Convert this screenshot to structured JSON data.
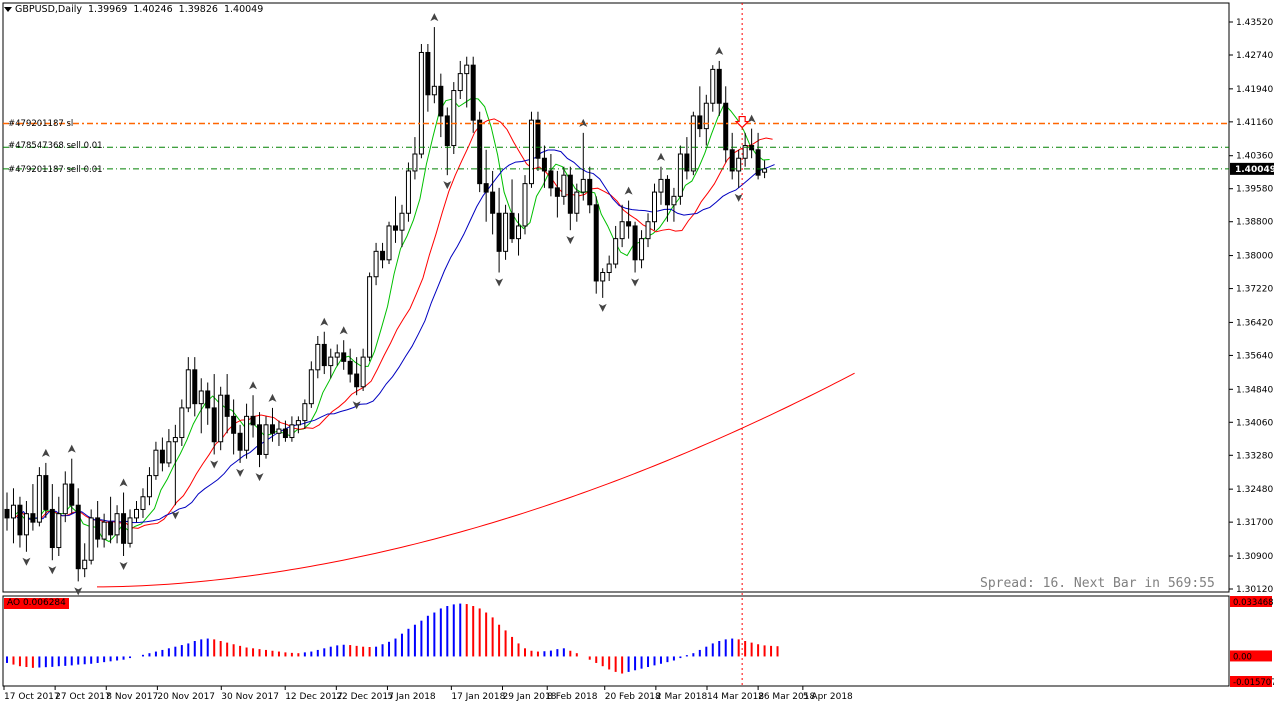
{
  "header": {
    "symbol": "GBPUSD,Daily",
    "open": "1.39969",
    "high": "1.40246",
    "low": "1.39826",
    "close": "1.40049"
  },
  "orders": [
    {
      "label": "#479201187 sl",
      "price": 1.4112,
      "color": "#ff6600"
    },
    {
      "label": "#478547368 sell 0.01",
      "price": 1.4056,
      "color": "#008000"
    },
    {
      "label": "#479201187 sell 0.01",
      "price": 1.40049,
      "color": "#008000"
    }
  ],
  "price_axis": {
    "labels": [
      "1.43520",
      "1.42740",
      "1.41940",
      "1.41160",
      "1.40360",
      "1.39580",
      "1.38800",
      "1.38000",
      "1.37220",
      "1.36420",
      "1.35640",
      "1.34840",
      "1.34060",
      "1.33280",
      "1.32480",
      "1.31700",
      "1.30900",
      "1.30120"
    ],
    "current": "1.40049",
    "current_bg": "#000000"
  },
  "time_axis": {
    "labels": [
      "17 Oct 2017",
      "27 Oct 2017",
      "8 Nov 2017",
      "20 Nov 2017",
      "30 Nov 2017",
      "12 Dec 2017",
      "22 Dec 2017",
      "5 Jan 2018",
      "17 Jan 2018",
      "29 Jan 2018",
      "8 Feb 2018",
      "20 Feb 2018",
      "2 Mar 2018",
      "14 Mar 2018",
      "26 Mar 2018",
      "5 Apr 2018"
    ]
  },
  "status": {
    "spread_text": "Spread: 16. Next Bar in 569:55"
  },
  "oscillator": {
    "label": "AO 0.006284",
    "axis_labels": [
      "0.033468",
      "0.00",
      "-0.015707"
    ],
    "up_color": "#0000ff",
    "down_color": "#ff0000"
  },
  "chart_data": {
    "type": "candlestick",
    "symbol": "GBPUSD",
    "timeframe": "Daily",
    "ylim": [
      1.3012,
      1.4352
    ],
    "ohlc": [
      [
        1.32,
        1.324,
        1.315,
        1.318
      ],
      [
        1.318,
        1.325,
        1.312,
        1.321
      ],
      [
        1.321,
        1.323,
        1.311,
        1.314
      ],
      [
        1.314,
        1.322,
        1.31,
        1.319
      ],
      [
        1.319,
        1.326,
        1.315,
        1.317
      ],
      [
        1.317,
        1.33,
        1.316,
        1.328
      ],
      [
        1.328,
        1.331,
        1.318,
        1.32
      ],
      [
        1.32,
        1.326,
        1.308,
        1.311
      ],
      [
        1.311,
        1.323,
        1.309,
        1.319
      ],
      [
        1.319,
        1.329,
        1.317,
        1.326
      ],
      [
        1.326,
        1.332,
        1.319,
        1.321
      ],
      [
        1.321,
        1.325,
        1.303,
        1.306
      ],
      [
        1.306,
        1.312,
        1.304,
        1.308
      ],
      [
        1.308,
        1.32,
        1.307,
        1.318
      ],
      [
        1.318,
        1.322,
        1.311,
        1.313
      ],
      [
        1.313,
        1.319,
        1.311,
        1.317
      ],
      [
        1.317,
        1.323,
        1.312,
        1.314
      ],
      [
        1.314,
        1.321,
        1.312,
        1.319
      ],
      [
        1.319,
        1.324,
        1.309,
        1.312
      ],
      [
        1.312,
        1.32,
        1.311,
        1.318
      ],
      [
        1.318,
        1.322,
        1.317,
        1.32
      ],
      [
        1.32,
        1.325,
        1.318,
        1.323
      ],
      [
        1.323,
        1.33,
        1.321,
        1.328
      ],
      [
        1.328,
        1.336,
        1.327,
        1.334
      ],
      [
        1.334,
        1.337,
        1.329,
        1.331
      ],
      [
        1.331,
        1.339,
        1.33,
        1.336
      ],
      [
        1.336,
        1.34,
        1.321,
        1.337
      ],
      [
        1.337,
        1.346,
        1.335,
        1.344
      ],
      [
        1.344,
        1.356,
        1.343,
        1.353
      ],
      [
        1.353,
        1.356,
        1.342,
        1.345
      ],
      [
        1.345,
        1.351,
        1.338,
        1.348
      ],
      [
        1.348,
        1.35,
        1.34,
        1.344
      ],
      [
        1.344,
        1.352,
        1.333,
        1.336
      ],
      [
        1.336,
        1.349,
        1.334,
        1.347
      ],
      [
        1.347,
        1.352,
        1.338,
        1.342
      ],
      [
        1.342,
        1.346,
        1.333,
        1.338
      ],
      [
        1.338,
        1.34,
        1.331,
        1.334
      ],
      [
        1.334,
        1.345,
        1.332,
        1.342
      ],
      [
        1.342,
        1.347,
        1.337,
        1.34
      ],
      [
        1.34,
        1.343,
        1.33,
        1.333
      ],
      [
        1.333,
        1.342,
        1.332,
        1.34
      ],
      [
        1.34,
        1.344,
        1.336,
        1.338
      ],
      [
        1.338,
        1.341,
        1.335,
        1.339
      ],
      [
        1.339,
        1.341,
        1.336,
        1.337
      ],
      [
        1.337,
        1.342,
        1.336,
        1.34
      ],
      [
        1.34,
        1.342,
        1.338,
        1.341
      ],
      [
        1.341,
        1.346,
        1.339,
        1.345
      ],
      [
        1.345,
        1.355,
        1.344,
        1.353
      ],
      [
        1.353,
        1.361,
        1.351,
        1.359
      ],
      [
        1.359,
        1.362,
        1.352,
        1.354
      ],
      [
        1.354,
        1.358,
        1.351,
        1.356
      ],
      [
        1.356,
        1.359,
        1.354,
        1.357
      ],
      [
        1.357,
        1.36,
        1.353,
        1.355
      ],
      [
        1.355,
        1.358,
        1.35,
        1.352
      ],
      [
        1.352,
        1.356,
        1.347,
        1.349
      ],
      [
        1.349,
        1.358,
        1.348,
        1.356
      ],
      [
        1.356,
        1.376,
        1.355,
        1.375
      ],
      [
        1.375,
        1.383,
        1.373,
        1.381
      ],
      [
        1.381,
        1.383,
        1.377,
        1.379
      ],
      [
        1.379,
        1.388,
        1.378,
        1.387
      ],
      [
        1.387,
        1.394,
        1.383,
        1.386
      ],
      [
        1.386,
        1.392,
        1.382,
        1.39
      ],
      [
        1.39,
        1.402,
        1.388,
        1.4
      ],
      [
        1.4,
        1.408,
        1.398,
        1.404
      ],
      [
        1.404,
        1.43,
        1.403,
        1.428
      ],
      [
        1.428,
        1.43,
        1.414,
        1.418
      ],
      [
        1.418,
        1.434,
        1.416,
        1.42
      ],
      [
        1.42,
        1.423,
        1.408,
        1.413
      ],
      [
        1.413,
        1.415,
        1.399,
        1.406
      ],
      [
        1.406,
        1.421,
        1.404,
        1.419
      ],
      [
        1.419,
        1.426,
        1.417,
        1.423
      ],
      [
        1.423,
        1.427,
        1.415,
        1.425
      ],
      [
        1.425,
        1.427,
        1.409,
        1.412
      ],
      [
        1.412,
        1.414,
        1.395,
        1.397
      ],
      [
        1.397,
        1.405,
        1.388,
        1.395
      ],
      [
        1.395,
        1.4,
        1.385,
        1.39
      ],
      [
        1.39,
        1.396,
        1.376,
        1.381
      ],
      [
        1.381,
        1.392,
        1.379,
        1.39
      ],
      [
        1.39,
        1.398,
        1.383,
        1.384
      ],
      [
        1.384,
        1.39,
        1.38,
        1.387
      ],
      [
        1.387,
        1.399,
        1.385,
        1.397
      ],
      [
        1.397,
        1.414,
        1.396,
        1.412
      ],
      [
        1.412,
        1.414,
        1.4,
        1.403
      ],
      [
        1.403,
        1.406,
        1.396,
        1.4
      ],
      [
        1.4,
        1.404,
        1.394,
        1.396
      ],
      [
        1.396,
        1.4,
        1.389,
        1.394
      ],
      [
        1.394,
        1.401,
        1.392,
        1.399
      ],
      [
        1.399,
        1.401,
        1.386,
        1.39
      ],
      [
        1.39,
        1.397,
        1.388,
        1.395
      ],
      [
        1.395,
        1.409,
        1.393,
        1.398
      ],
      [
        1.398,
        1.401,
        1.39,
        1.392
      ],
      [
        1.392,
        1.394,
        1.371,
        1.374
      ],
      [
        1.374,
        1.377,
        1.37,
        1.376
      ],
      [
        1.376,
        1.38,
        1.374,
        1.378
      ],
      [
        1.378,
        1.387,
        1.377,
        1.384
      ],
      [
        1.384,
        1.392,
        1.382,
        1.388
      ],
      [
        1.388,
        1.393,
        1.384,
        1.387
      ],
      [
        1.387,
        1.388,
        1.376,
        1.379
      ],
      [
        1.379,
        1.386,
        1.377,
        1.384
      ],
      [
        1.384,
        1.39,
        1.382,
        1.388
      ],
      [
        1.388,
        1.397,
        1.386,
        1.395
      ],
      [
        1.395,
        1.401,
        1.392,
        1.398
      ],
      [
        1.398,
        1.399,
        1.388,
        1.392
      ],
      [
        1.392,
        1.396,
        1.388,
        1.394
      ],
      [
        1.394,
        1.406,
        1.392,
        1.404
      ],
      [
        1.404,
        1.408,
        1.398,
        1.4
      ],
      [
        1.4,
        1.414,
        1.399,
        1.413
      ],
      [
        1.413,
        1.42,
        1.408,
        1.41
      ],
      [
        1.41,
        1.418,
        1.406,
        1.416
      ],
      [
        1.416,
        1.425,
        1.414,
        1.424
      ],
      [
        1.424,
        1.426,
        1.413,
        1.416
      ],
      [
        1.416,
        1.42,
        1.402,
        1.405
      ],
      [
        1.405,
        1.409,
        1.398,
        1.4
      ],
      [
        1.4,
        1.405,
        1.396,
        1.403
      ],
      [
        1.403,
        1.409,
        1.401,
        1.406
      ],
      [
        1.406,
        1.41,
        1.403,
        1.405
      ],
      [
        1.405,
        1.409,
        1.398,
        1.399
      ],
      [
        1.3997,
        1.4025,
        1.3983,
        1.4005
      ]
    ],
    "moving_averages": [
      {
        "color": "#00c000"
      },
      {
        "color": "#ff0000"
      },
      {
        "color": "#0000c0"
      },
      {
        "color": "#ff0000"
      }
    ],
    "ao": {
      "label": "AO",
      "value": 0.006284,
      "ylim": [
        -0.015707,
        0.033468
      ],
      "values": [
        -0.004,
        -0.005,
        -0.006,
        -0.0065,
        -0.007,
        -0.0068,
        -0.0066,
        -0.0064,
        -0.006,
        -0.0058,
        -0.0055,
        -0.005,
        -0.0048,
        -0.0045,
        -0.004,
        -0.0035,
        -0.003,
        -0.0025,
        -0.002,
        -0.001,
        0.0,
        0.001,
        0.002,
        0.003,
        0.004,
        0.005,
        0.006,
        0.007,
        0.008,
        0.0095,
        0.0105,
        0.011,
        0.0105,
        0.0095,
        0.0085,
        0.0075,
        0.0065,
        0.0055,
        0.005,
        0.0045,
        0.004,
        0.0035,
        0.003,
        0.0025,
        0.0022,
        0.002,
        0.0025,
        0.003,
        0.004,
        0.005,
        0.006,
        0.0068,
        0.0072,
        0.007,
        0.0065,
        0.006,
        0.0058,
        0.006,
        0.0075,
        0.009,
        0.011,
        0.014,
        0.017,
        0.0195,
        0.022,
        0.025,
        0.027,
        0.0295,
        0.031,
        0.032,
        0.0325,
        0.0322,
        0.031,
        0.0295,
        0.027,
        0.024,
        0.0195,
        0.016,
        0.012,
        0.008,
        0.005,
        0.0035,
        0.003,
        0.0032,
        0.0036,
        0.0045,
        0.005,
        0.0035,
        0.002,
        0.0,
        -0.002,
        -0.004,
        -0.006,
        -0.008,
        -0.0095,
        -0.0105,
        -0.0095,
        -0.0085,
        -0.0075,
        -0.0065,
        -0.0055,
        -0.0045,
        -0.0035,
        -0.0025,
        -0.001,
        0.0008,
        0.002,
        0.004,
        0.006,
        0.008,
        0.0095,
        0.0105,
        0.011,
        0.0105,
        0.0095,
        0.0085,
        0.0075,
        0.0068,
        0.0065,
        0.0063
      ]
    },
    "annotations": {
      "order_arrow_color": "#ff0000",
      "vertical_marker_color": "#ff0000"
    }
  }
}
